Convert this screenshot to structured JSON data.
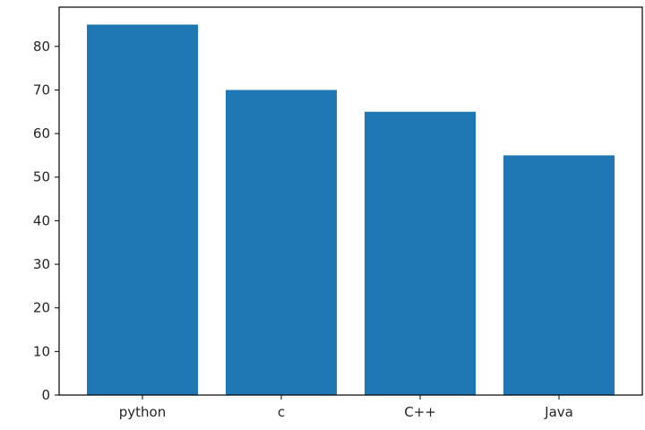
{
  "chart_data": {
    "type": "bar",
    "categories": [
      "python",
      "c",
      "C++",
      "Java"
    ],
    "values": [
      85,
      70,
      65,
      55
    ],
    "title": "",
    "xlabel": "",
    "ylabel": "",
    "ylim": [
      0,
      89
    ],
    "yticks": [
      0,
      10,
      20,
      30,
      40,
      50,
      60,
      70,
      80
    ],
    "grid": false,
    "bar_color": "#1f77b4",
    "axis_color": "#000000",
    "text_color": "#262626"
  }
}
